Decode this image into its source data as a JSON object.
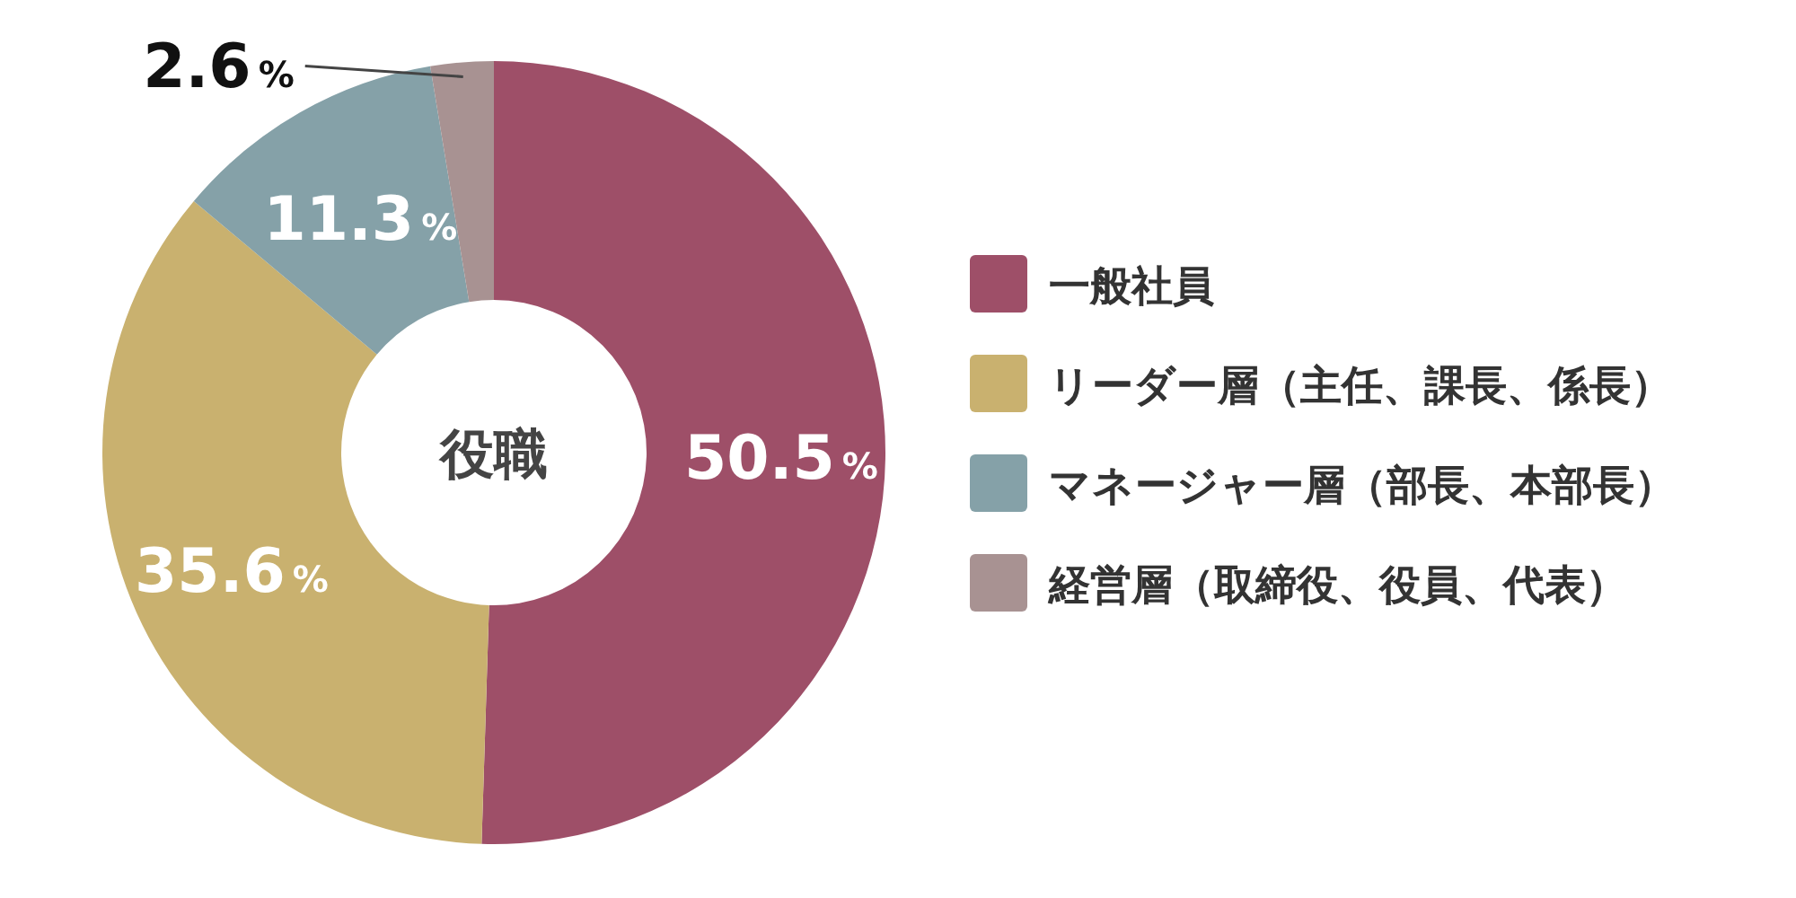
{
  "chart_data": {
    "type": "donut",
    "title": "役職",
    "categories": [
      "一般社員",
      "リーダー層（主任、課長、係長）",
      "マネージャー層（部長、本部長）",
      "経営層（取締役、役員、代表）"
    ],
    "values": [
      50.5,
      35.6,
      11.3,
      2.6
    ],
    "colors": [
      "#9e4f68",
      "#c9b16f",
      "#85a1a8",
      "#a89292"
    ],
    "value_labels": [
      "50.5%",
      "35.6%",
      "11.3%",
      "2.6%"
    ],
    "legend": "right"
  }
}
